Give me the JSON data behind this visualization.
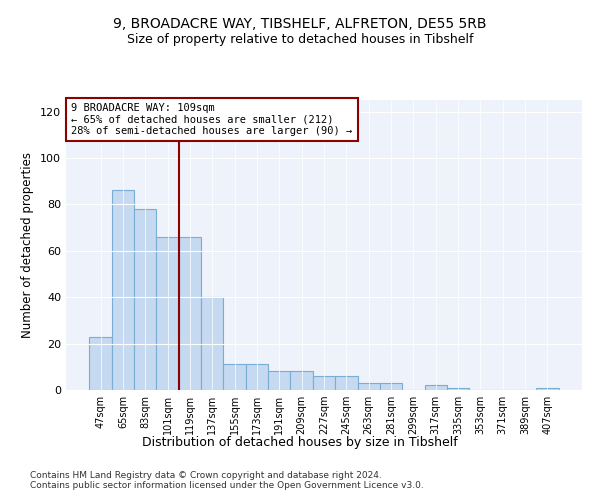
{
  "title1": "9, BROADACRE WAY, TIBSHELF, ALFRETON, DE55 5RB",
  "title2": "Size of property relative to detached houses in Tibshelf",
  "xlabel": "Distribution of detached houses by size in Tibshelf",
  "ylabel": "Number of detached properties",
  "categories": [
    "47sqm",
    "65sqm",
    "83sqm",
    "101sqm",
    "119sqm",
    "137sqm",
    "155sqm",
    "173sqm",
    "191sqm",
    "209sqm",
    "227sqm",
    "245sqm",
    "263sqm",
    "281sqm",
    "299sqm",
    "317sqm",
    "335sqm",
    "353sqm",
    "371sqm",
    "389sqm",
    "407sqm"
  ],
  "values": [
    23,
    86,
    78,
    66,
    66,
    40,
    11,
    11,
    8,
    8,
    6,
    6,
    3,
    3,
    0,
    2,
    1,
    0,
    0,
    0,
    1
  ],
  "bar_color": "#c5d9f0",
  "bar_edge_color": "#7aadd4",
  "vline_index": 4,
  "vline_color": "#8b0000",
  "annotation_line1": "9 BROADACRE WAY: 109sqm",
  "annotation_line2": "← 65% of detached houses are smaller (212)",
  "annotation_line3": "28% of semi-detached houses are larger (90) →",
  "annotation_box_color": "#ffffff",
  "annotation_box_edgecolor": "#8b0000",
  "ylim": [
    0,
    125
  ],
  "yticks": [
    0,
    20,
    40,
    60,
    80,
    100,
    120
  ],
  "footer1": "Contains HM Land Registry data © Crown copyright and database right 2024.",
  "footer2": "Contains public sector information licensed under the Open Government Licence v3.0.",
  "bg_color": "#eef2fa"
}
